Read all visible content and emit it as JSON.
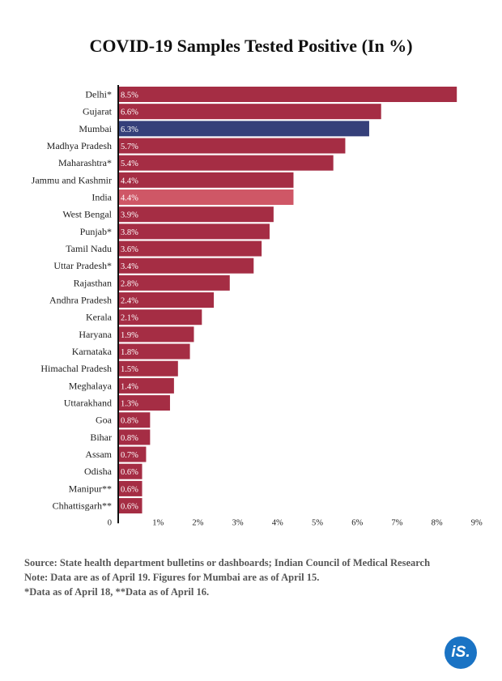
{
  "colors": {
    "bar": "#a52d44",
    "highlight": "#35407a",
    "india": "#cf5766",
    "bar_label": "#ffffff",
    "axis": "#111111",
    "logo": "#1a73c4"
  },
  "chart_data": {
    "type": "bar",
    "orientation": "horizontal",
    "title": "COVID-19 Samples Tested Positive (In %)",
    "categories": [
      "Delhi*",
      "Gujarat",
      "Mumbai",
      "Madhya Pradesh",
      "Maharashtra*",
      "Jammu and Kashmir",
      "India",
      "West Bengal",
      "Punjab*",
      "Tamil Nadu",
      "Uttar Pradesh*",
      "Rajasthan",
      "Andhra Pradesh",
      "Kerala",
      "Haryana",
      "Karnataka",
      "Himachal Pradesh",
      "Meghalaya",
      "Uttarakhand",
      "Goa",
      "Bihar",
      "Assam",
      "Odisha",
      "Manipur**",
      "Chhattisgarh**"
    ],
    "values": [
      8.5,
      6.6,
      6.3,
      5.7,
      5.4,
      4.4,
      4.4,
      3.9,
      3.8,
      3.6,
      3.4,
      2.8,
      2.4,
      2.1,
      1.9,
      1.8,
      1.5,
      1.4,
      1.3,
      0.8,
      0.8,
      0.7,
      0.6,
      0.6,
      0.6
    ],
    "value_labels": [
      "8.5%",
      "6.6%",
      "6.3%",
      "5.7%",
      "5.4%",
      "4.4%",
      "4.4%",
      "3.9%",
      "3.8%",
      "3.6%",
      "3.4%",
      "2.8%",
      "2.4%",
      "2.1%",
      "1.9%",
      "1.8%",
      "1.5%",
      "1.4%",
      "1.3%",
      "0.8%",
      "0.8%",
      "0.7%",
      "0.6%",
      "0.6%",
      "0.6%"
    ],
    "highlighted": {
      "Mumbai": "highlight",
      "India": "india"
    },
    "xlim": [
      0,
      9
    ],
    "xticks": [
      0,
      1,
      2,
      3,
      4,
      5,
      6,
      7,
      8,
      9
    ],
    "xtick_labels": [
      "0",
      "1%",
      "2%",
      "3%",
      "4%",
      "5%",
      "6%",
      "7%",
      "8%",
      "9%"
    ],
    "grid": false,
    "legend": "none"
  },
  "footer": {
    "source": "Source: State health department bulletins or dashboards; Indian Council of Medical Research",
    "note": "Note: Data are as of April 19. Figures for Mumbai are as of April 15.",
    "footnote": "*Data as of April 18, **Data as of April 16."
  },
  "logo": {
    "text": "iS."
  }
}
